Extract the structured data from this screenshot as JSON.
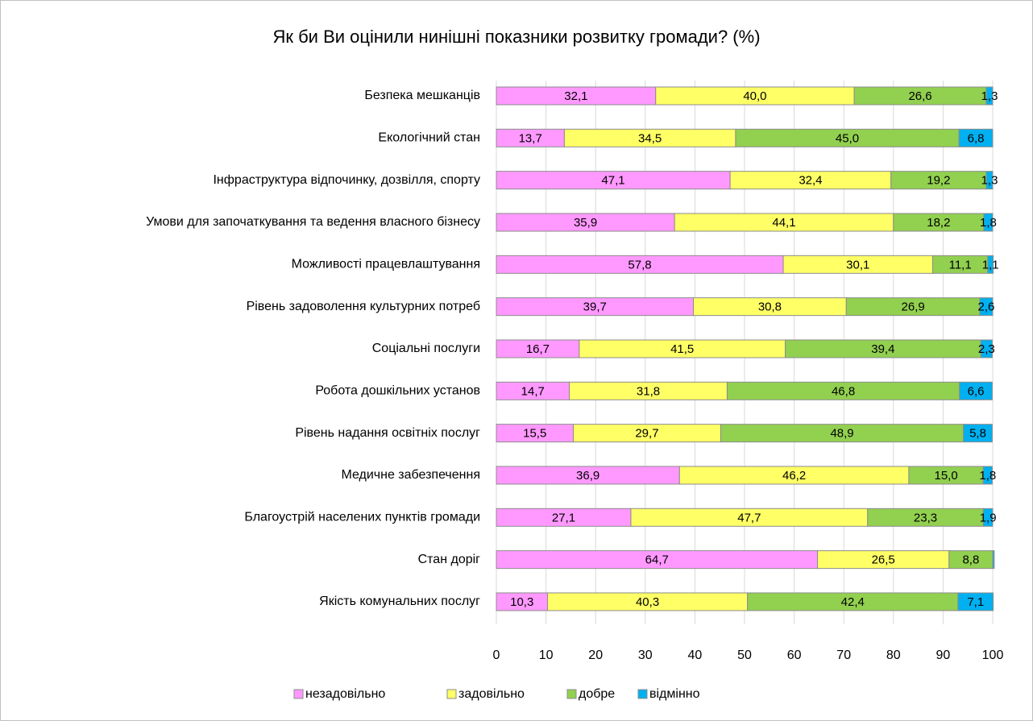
{
  "chart_data": {
    "type": "stacked-bar-horizontal",
    "title": "Як би Ви оцінили нинішні показники розвитку громади? (%)",
    "categories": [
      "Безпека мешканців",
      "Екологічний стан",
      "Інфраструктура відпочинку, дозвілля, спорту",
      "Умови для започаткування та ведення власного бізнесу",
      "Можливості працевлаштування",
      "Рівень задоволення культурних потреб",
      "Соціальні послуги",
      "Робота дошкільних установ",
      "Рівень надання освітніх послуг",
      "Медичне забезпечення",
      "Благоустрій населених пунктів громади",
      "Стан доріг",
      "Якість комунальних послуг"
    ],
    "series": [
      {
        "name": "незадовільно",
        "color": "#ff99ff",
        "values": [
          32.1,
          13.7,
          47.1,
          35.9,
          57.8,
          39.7,
          16.7,
          14.7,
          15.5,
          36.9,
          27.1,
          64.7,
          10.3
        ],
        "value_labels": [
          "32,1",
          "13,7",
          "47,1",
          "35,9",
          "57,8",
          "39,7",
          "16,7",
          "14,7",
          "15,5",
          "36,9",
          "27,1",
          "64,7",
          "10,3"
        ]
      },
      {
        "name": "задовільно",
        "color": "#ffff66",
        "values": [
          40.0,
          34.5,
          32.4,
          44.1,
          30.1,
          30.8,
          41.5,
          31.8,
          29.7,
          46.2,
          47.7,
          26.5,
          40.3
        ],
        "value_labels": [
          "40,0",
          "34,5",
          "32,4",
          "44,1",
          "30,1",
          "30,8",
          "41,5",
          "31,8",
          "29,7",
          "46,2",
          "47,7",
          "26,5",
          "40,3"
        ]
      },
      {
        "name": "добре",
        "color": "#92d050",
        "values": [
          26.6,
          45.0,
          19.2,
          18.2,
          11.1,
          26.9,
          39.4,
          46.8,
          48.9,
          15.0,
          23.3,
          8.8,
          42.4
        ],
        "value_labels": [
          "26,6",
          "45,0",
          "19,2",
          "18,2",
          "11,1",
          "26,9",
          "39,4",
          "46,8",
          "48,9",
          "15,0",
          "23,3",
          "8,8",
          "42,4"
        ]
      },
      {
        "name": "відмінно",
        "color": "#00b0f0",
        "values": [
          1.3,
          6.8,
          1.3,
          1.8,
          1.1,
          2.6,
          2.3,
          6.6,
          5.8,
          1.8,
          1.9,
          0.3,
          7.1
        ],
        "value_labels": [
          "1,3",
          "6,8",
          "1,3",
          "1,8",
          "1,1",
          "2,6",
          "2,3",
          "6,6",
          "5,8",
          "1,8",
          "1,9",
          null,
          "7,1"
        ]
      }
    ],
    "xlim": [
      0,
      100
    ],
    "xticks": [
      0,
      10,
      20,
      30,
      40,
      50,
      60,
      70,
      80,
      90,
      100
    ],
    "grid": true,
    "legend": "bottom"
  }
}
